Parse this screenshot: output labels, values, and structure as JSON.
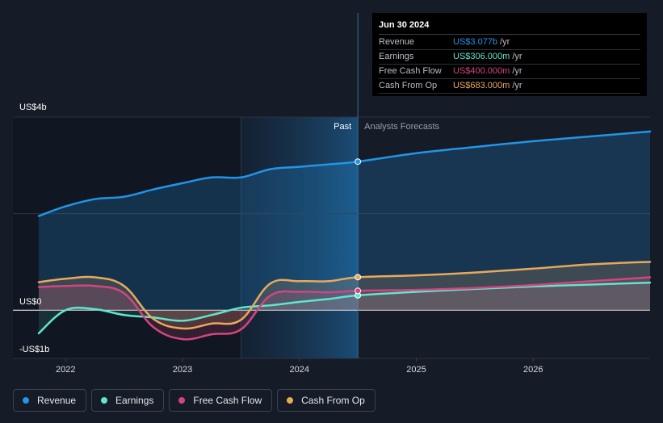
{
  "colors": {
    "revenue": "#2394e6",
    "earnings": "#5ee6cf",
    "free_cash_flow": "#d4457f",
    "cash_from_op": "#e8a95c"
  },
  "labels": {
    "past": "Past",
    "forecast": "Analysts Forecasts"
  },
  "tooltip": {
    "date": "Jun 30 2024",
    "rows": [
      {
        "label": "Revenue",
        "value": "US$3.077b",
        "unit": "/yr"
      },
      {
        "label": "Earnings",
        "value": "US$306.000m",
        "unit": "/yr"
      },
      {
        "label": "Free Cash Flow",
        "value": "US$400.000m",
        "unit": "/yr"
      },
      {
        "label": "Cash From Op",
        "value": "US$683.000m",
        "unit": "/yr"
      }
    ]
  },
  "legend": [
    {
      "label": "Revenue",
      "icon": "revenue-dot-icon"
    },
    {
      "label": "Earnings",
      "icon": "earnings-dot-icon"
    },
    {
      "label": "Free Cash Flow",
      "icon": "free-cash-flow-dot-icon"
    },
    {
      "label": "Cash From Op",
      "icon": "cash-from-op-dot-icon"
    }
  ],
  "chart_data": {
    "type": "line",
    "title": "",
    "xlabel": "",
    "ylabel": "",
    "unit": "US$ billions",
    "ylim": [
      -1.0,
      4.0
    ],
    "y_tick_labels": [
      {
        "value": 4.0,
        "label": "US$4b"
      },
      {
        "value": 0.0,
        "label": "US$0"
      },
      {
        "value": -1.0,
        "label": "-US$1b"
      }
    ],
    "x_ticks": [
      2022,
      2023,
      2024,
      2025,
      2026
    ],
    "xlim": [
      2021.77,
      2027.0
    ],
    "past_region_start": 2023.5,
    "cutoff": 2024.5,
    "series": [
      {
        "name": "Revenue",
        "key": "revenue",
        "past": [
          [
            2021.77,
            1.95
          ],
          [
            2022.0,
            2.15
          ],
          [
            2022.25,
            2.3
          ],
          [
            2022.5,
            2.35
          ],
          [
            2022.75,
            2.5
          ],
          [
            2023.0,
            2.63
          ],
          [
            2023.25,
            2.75
          ],
          [
            2023.5,
            2.75
          ],
          [
            2023.75,
            2.92
          ],
          [
            2024.0,
            2.97
          ],
          [
            2024.25,
            3.02
          ],
          [
            2024.5,
            3.077
          ]
        ],
        "forecast": [
          [
            2024.5,
            3.077
          ],
          [
            2025.0,
            3.25
          ],
          [
            2025.5,
            3.38
          ],
          [
            2026.0,
            3.5
          ],
          [
            2026.5,
            3.6
          ],
          [
            2027.0,
            3.7
          ]
        ]
      },
      {
        "name": "Earnings",
        "key": "earnings",
        "past": [
          [
            2021.77,
            -0.48
          ],
          [
            2022.0,
            0.0
          ],
          [
            2022.25,
            0.02
          ],
          [
            2022.5,
            -0.1
          ],
          [
            2022.75,
            -0.15
          ],
          [
            2023.0,
            -0.22
          ],
          [
            2023.25,
            -0.1
          ],
          [
            2023.5,
            0.05
          ],
          [
            2023.75,
            0.1
          ],
          [
            2024.0,
            0.17
          ],
          [
            2024.25,
            0.23
          ],
          [
            2024.5,
            0.306
          ]
        ],
        "forecast": [
          [
            2024.5,
            0.306
          ],
          [
            2025.0,
            0.38
          ],
          [
            2025.5,
            0.44
          ],
          [
            2026.0,
            0.49
          ],
          [
            2026.5,
            0.53
          ],
          [
            2027.0,
            0.57
          ]
        ]
      },
      {
        "name": "Free Cash Flow",
        "key": "free_cash_flow",
        "past": [
          [
            2021.77,
            0.48
          ],
          [
            2022.0,
            0.5
          ],
          [
            2022.25,
            0.5
          ],
          [
            2022.5,
            0.35
          ],
          [
            2022.75,
            -0.35
          ],
          [
            2023.0,
            -0.6
          ],
          [
            2023.25,
            -0.5
          ],
          [
            2023.5,
            -0.4
          ],
          [
            2023.75,
            0.3
          ],
          [
            2024.0,
            0.38
          ],
          [
            2024.25,
            0.37
          ],
          [
            2024.5,
            0.4
          ]
        ],
        "forecast": [
          [
            2024.5,
            0.4
          ],
          [
            2025.0,
            0.42
          ],
          [
            2025.5,
            0.46
          ],
          [
            2026.0,
            0.52
          ],
          [
            2026.5,
            0.6
          ],
          [
            2027.0,
            0.68
          ]
        ]
      },
      {
        "name": "Cash From Op",
        "key": "cash_from_op",
        "past": [
          [
            2021.77,
            0.58
          ],
          [
            2022.0,
            0.65
          ],
          [
            2022.25,
            0.68
          ],
          [
            2022.5,
            0.5
          ],
          [
            2022.75,
            -0.18
          ],
          [
            2023.0,
            -0.38
          ],
          [
            2023.25,
            -0.28
          ],
          [
            2023.5,
            -0.2
          ],
          [
            2023.75,
            0.55
          ],
          [
            2024.0,
            0.6
          ],
          [
            2024.25,
            0.6
          ],
          [
            2024.5,
            0.683
          ]
        ],
        "forecast": [
          [
            2024.5,
            0.683
          ],
          [
            2025.0,
            0.72
          ],
          [
            2025.5,
            0.78
          ],
          [
            2026.0,
            0.86
          ],
          [
            2026.5,
            0.95
          ],
          [
            2027.0,
            1.0
          ]
        ]
      }
    ]
  }
}
